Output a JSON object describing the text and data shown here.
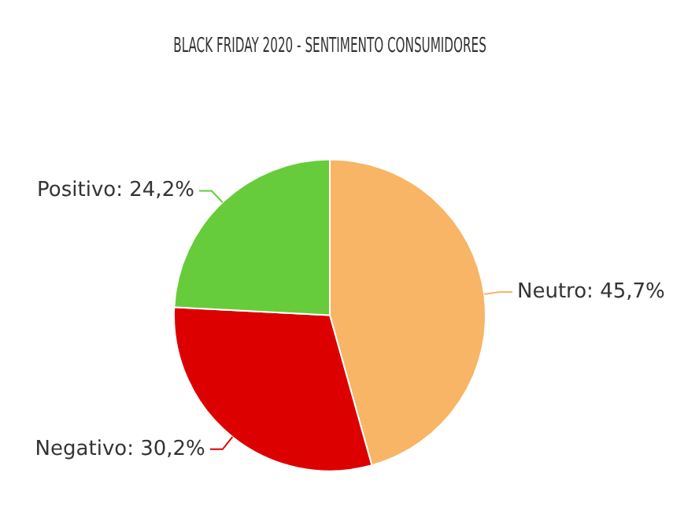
{
  "chart_data": {
    "type": "pie",
    "title": "BLACK FRIDAY 2020 - SENTIMENTO CONSUMIDORES",
    "categories": [
      "Neutro",
      "Negativo",
      "Positivo"
    ],
    "values": [
      45.7,
      30.2,
      24.2
    ],
    "value_labels": [
      "45,7%",
      "30,2%",
      "24,2%"
    ],
    "colors": [
      "#f7b565",
      "#dd0000",
      "#66cc3c"
    ]
  }
}
